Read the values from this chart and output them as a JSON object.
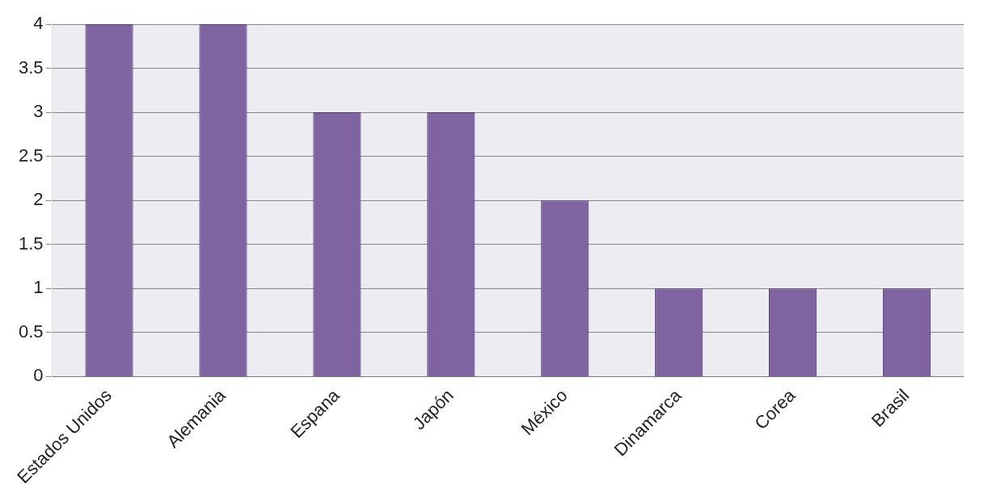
{
  "chart_data": {
    "type": "bar",
    "categories": [
      "Estados Unidos",
      "Alemania",
      "Espana",
      "Japón",
      "México",
      "Dinamarca",
      "Corea",
      "Brasil"
    ],
    "values": [
      4,
      4,
      3,
      3,
      2,
      1,
      1,
      1
    ],
    "color": "#8064a2",
    "ylim": [
      0,
      4
    ],
    "yticks": [
      0,
      0.5,
      1,
      1.5,
      2,
      2.5,
      3,
      3.5,
      4
    ],
    "grid": "y"
  }
}
